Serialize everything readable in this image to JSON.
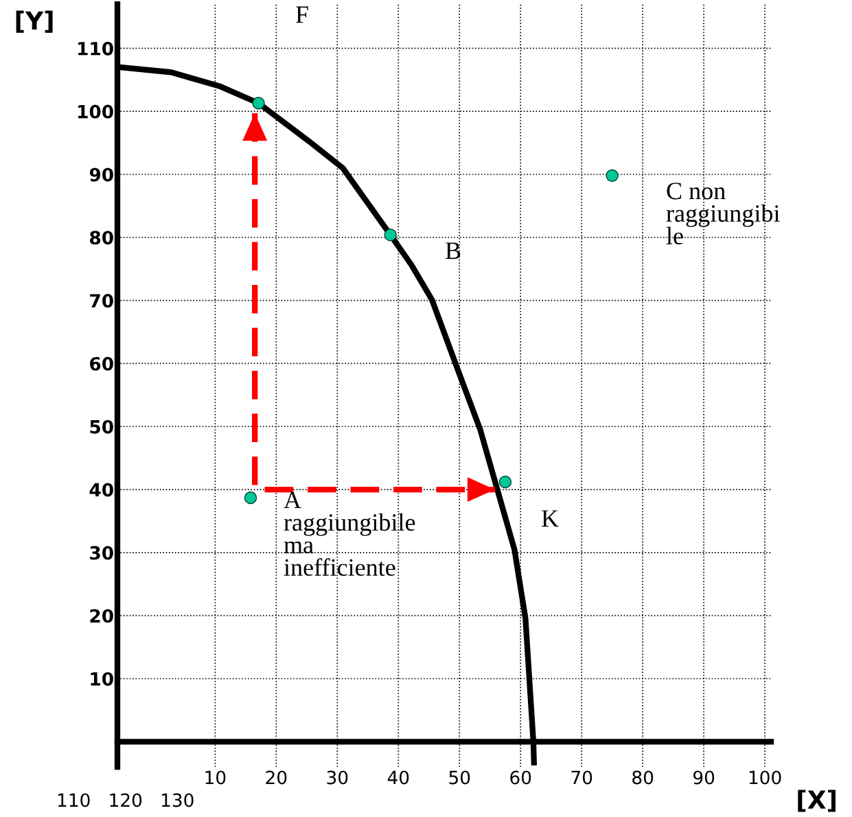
{
  "chart_data": {
    "type": "line",
    "xlabel": "[X]",
    "ylabel": "[Y]",
    "xlim": [
      -6,
      101
    ],
    "ylim": [
      -4,
      117
    ],
    "xticks": [
      10,
      20,
      30,
      40,
      50,
      60,
      70,
      80,
      90,
      100
    ],
    "yticks": [
      10,
      20,
      30,
      40,
      50,
      60,
      70,
      80,
      90,
      100,
      110
    ],
    "grid": true,
    "legend": false,
    "series": [
      {
        "color": "#000000",
        "line_style": "solid",
        "marker": "none",
        "x": [
          -5.6,
          2.8,
          10.7,
          17.1,
          25.3,
          30.9,
          38.7,
          42.1,
          45.5,
          50,
          53.4,
          59,
          60.8,
          62.1,
          62.2
        ],
        "values": [
          107,
          106.2,
          104,
          101.3,
          95.3,
          91,
          80.4,
          75.7,
          70.1,
          58.3,
          49.5,
          30.5,
          19.6,
          0,
          -3.3
        ]
      },
      {
        "type": "line",
        "color": "#ff0000",
        "line_style": "dashed",
        "marker": "none",
        "x": [
          16.5,
          16.5,
          55.8
        ],
        "values": [
          99.7,
          40,
          40
        ]
      },
      {
        "type": "scatter",
        "color": "#00c896",
        "marker": "circle",
        "x": [
          17.1,
          38.7,
          57.5,
          15.8,
          75
        ],
        "values": [
          101.3,
          80.4,
          41.2,
          38.7,
          89.8
        ]
      }
    ],
    "annotations": [
      "F",
      "B",
      "C non\nraggiungibi\nle",
      "A\nraggiungibile\nma\ninefficiente",
      "K",
      "110   120   130"
    ]
  }
}
